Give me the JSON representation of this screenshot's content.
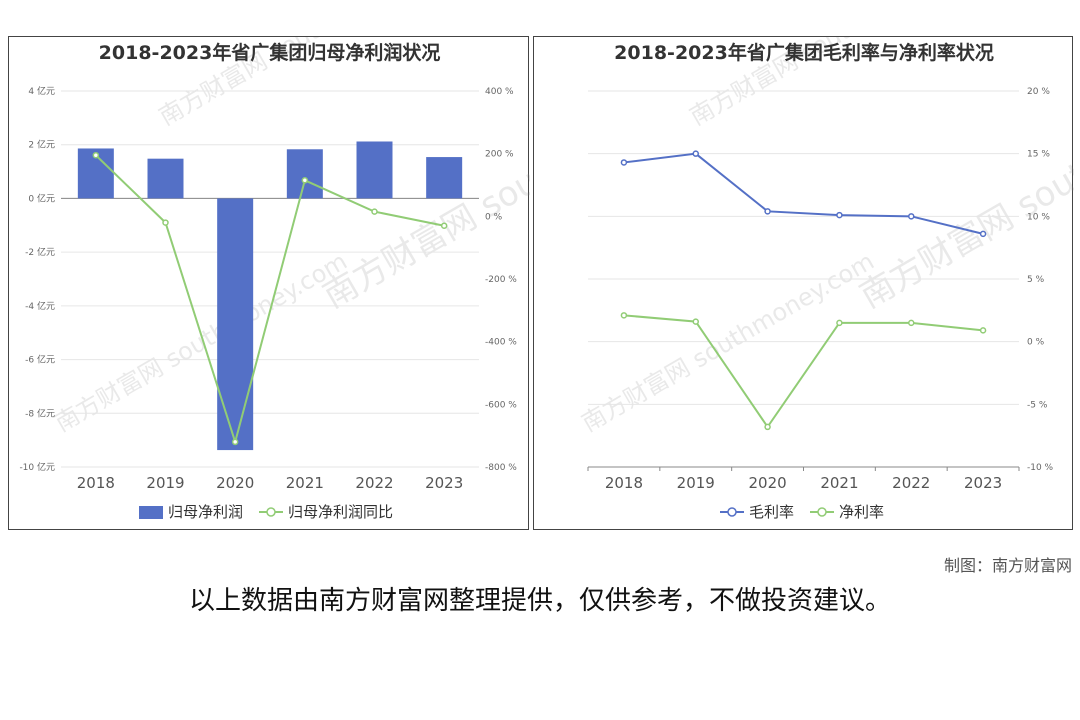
{
  "charts": [
    {
      "title": "2018-2023年省广集团归母净利润状况",
      "legend": [
        "归母净利润",
        "归母净利润同比"
      ],
      "watermark": "南方财富网 southmoney.com"
    },
    {
      "title": "2018-2023年省广集团毛利率与净利率状况",
      "legend": [
        "毛利率",
        "净利率"
      ],
      "watermark": "南方财富网 southmoney.com"
    }
  ],
  "footer": {
    "credit": "制图：南方财富网",
    "disclaimer": "以上数据由南方财富网整理提供，仅供参考，不做投资建议。"
  },
  "colors": {
    "blue": "#5470c6",
    "green": "#91cc75",
    "grid": "#e6e6e6",
    "axis": "#555555"
  },
  "chart_data": [
    {
      "type": "bar",
      "title": "2018-2023年省广集团归母净利润状况",
      "categories": [
        "2018",
        "2019",
        "2020",
        "2021",
        "2022",
        "2023"
      ],
      "series": [
        {
          "name": "归母净利润",
          "type": "bar",
          "axis": "left",
          "values": [
            1.86,
            1.48,
            -9.37,
            1.83,
            2.12,
            1.54
          ]
        },
        {
          "name": "归母净利润同比",
          "type": "line",
          "axis": "right",
          "values": [
            195,
            -20,
            -720,
            115,
            15,
            -30
          ]
        }
      ],
      "y_left": {
        "min": -10,
        "max": 4,
        "ticks": [
          4,
          2,
          0,
          -2,
          -4,
          -6,
          -8,
          -10
        ],
        "tick_labels": [
          "4 亿元",
          "2 亿元",
          "0 亿元",
          "-2 亿元",
          "-4 亿元",
          "-6 亿元",
          "-8 亿元",
          "-10 亿元"
        ]
      },
      "y_right": {
        "min": -800,
        "max": 400,
        "ticks": [
          400,
          200,
          0,
          -200,
          -400,
          -600,
          -800
        ],
        "tick_labels": [
          "400 %",
          "200 %",
          "0 %",
          "-200 %",
          "-400 %",
          "-600 %",
          "-800 %"
        ]
      },
      "grid": true,
      "legend_position": "bottom"
    },
    {
      "type": "line",
      "title": "2018-2023年省广集团毛利率与净利率状况",
      "categories": [
        "2018",
        "2019",
        "2020",
        "2021",
        "2022",
        "2023"
      ],
      "series": [
        {
          "name": "毛利率",
          "values": [
            14.3,
            15.0,
            10.4,
            10.1,
            10.0,
            8.6
          ]
        },
        {
          "name": "净利率",
          "values": [
            2.1,
            1.6,
            -6.8,
            1.5,
            1.5,
            0.9
          ]
        }
      ],
      "y_right": {
        "min": -10,
        "max": 20,
        "ticks": [
          20,
          15,
          10,
          5,
          0,
          -5,
          -10
        ],
        "tick_labels": [
          "20 %",
          "15 %",
          "10 %",
          "5 %",
          "0 %",
          "-5 %",
          "-10 %"
        ]
      },
      "grid": true,
      "legend_position": "bottom"
    }
  ]
}
